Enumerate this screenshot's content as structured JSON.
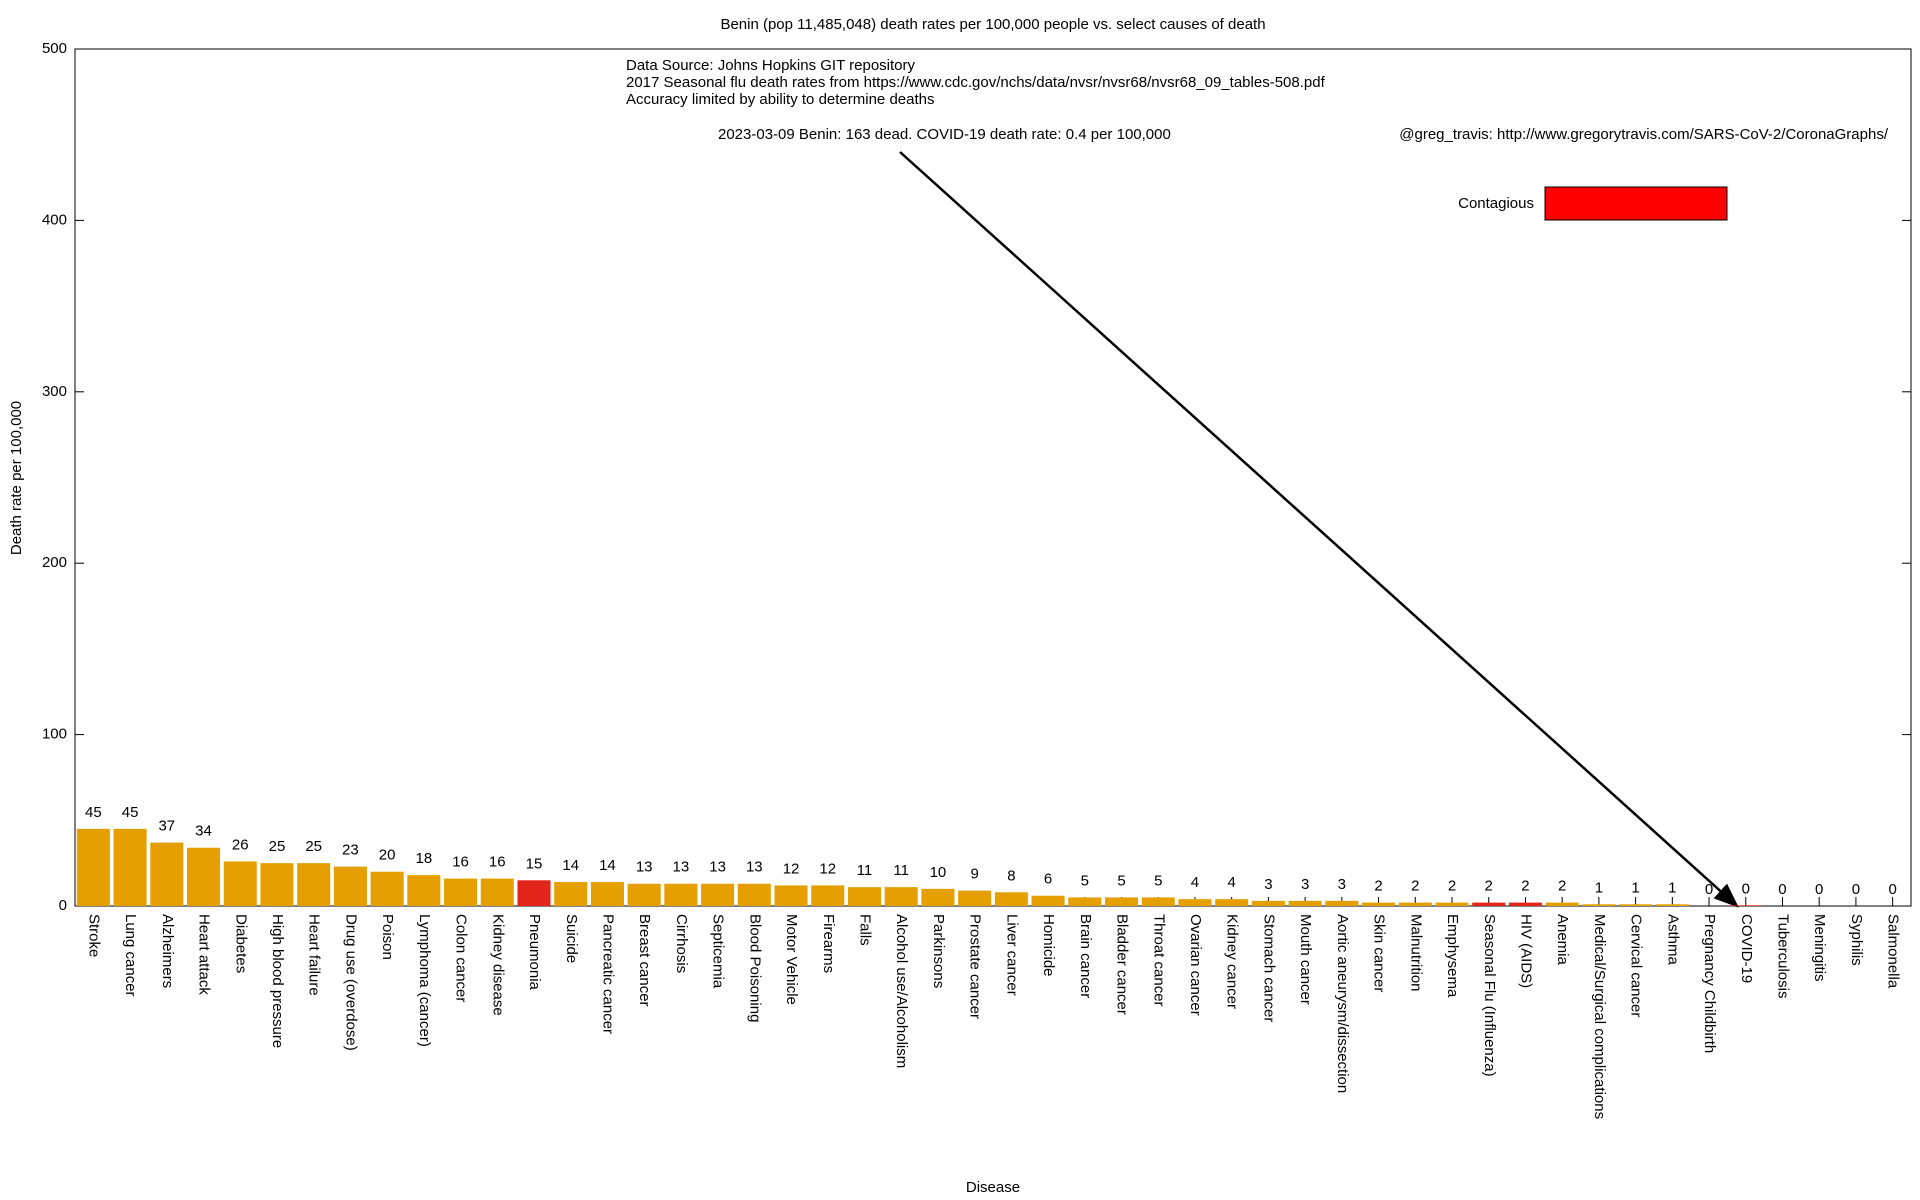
{
  "chart_data": {
    "type": "bar",
    "title": "Benin (pop 11,485,048) death rates per 100,000 people vs. select causes of death",
    "xlabel": "Disease",
    "ylabel": "Death rate per 100,000",
    "annotations": [
      "Data Source: Johns Hopkins GIT repository",
      "2017 Seasonal flu death rates from https://www.cdc.gov/nchs/data/nvsr/nvsr68/nvsr68_09_tables-508.pdf",
      "Accuracy limited by ability to determine deaths"
    ],
    "arrow_note": "2023-03-09 Benin: 163 dead.  COVID-19 death rate: 0.4 per 100,000",
    "credit": "@greg_travis: http://www.gregorytravis.com/SARS-CoV-2/CoronaGraphs/",
    "legend": {
      "label": "Contagious",
      "color": "#ff0000"
    },
    "categories": [
      "Stroke",
      "Lung cancer",
      "Alzheimers",
      "Heart attack",
      "Diabetes",
      "High blood pressure",
      "Heart failure",
      "Drug use (overdose)",
      "Poison",
      "Lymphoma (cancer)",
      "Colon cancer",
      "Kidney disease",
      "Pneumonia",
      "Suicide",
      "Pancreatic cancer",
      "Breast cancer",
      "Cirrhosis",
      "Septicemia",
      "Blood Poisoning",
      "Motor Vehicle",
      "Firearms",
      "Falls",
      "Alcohol use/Alcoholism",
      "Parkinsons",
      "Prostate cancer",
      "Liver cancer",
      "Homicide",
      "Brain cancer",
      "Bladder cancer",
      "Throat cancer",
      "Ovarian cancer",
      "Kidney cancer",
      "Stomach cancer",
      "Mouth cancer",
      "Aortic aneurysm/dissection",
      "Skin cancer",
      "Malnutrition",
      "Emphysema",
      "Seasonal Flu (Influenza)",
      "HIV (AIDS)",
      "Anemia",
      "Medical/Surgical complications",
      "Cervical cancer",
      "Asthma",
      "Pregnancy Childbirth",
      "COVID-19",
      "Tuberculosis",
      "Meningitis",
      "Syphilis",
      "Salmonella"
    ],
    "values": [
      45,
      45,
      37,
      34,
      26,
      25,
      25,
      23,
      20,
      18,
      16,
      16,
      15,
      14,
      14,
      13,
      13,
      13,
      13,
      12,
      12,
      11,
      11,
      10,
      9,
      8,
      6,
      5,
      5,
      5,
      4,
      4,
      3,
      3,
      3,
      2,
      2,
      2,
      2,
      2,
      2,
      1,
      1,
      1,
      0,
      0.4,
      0,
      0,
      0,
      0
    ],
    "value_labels": [
      "45",
      "45",
      "37",
      "34",
      "26",
      "25",
      "25",
      "23",
      "20",
      "18",
      "16",
      "16",
      "15",
      "14",
      "14",
      "13",
      "13",
      "13",
      "13",
      "12",
      "12",
      "11",
      "11",
      "10",
      "9",
      "8",
      "6",
      "5",
      "5",
      "5",
      "4",
      "4",
      "3",
      "3",
      "3",
      "2",
      "2",
      "2",
      "2",
      "2",
      "2",
      "1",
      "1",
      "1",
      "0",
      "0",
      "0",
      "0",
      "0",
      "0"
    ],
    "colors": [
      "#e69f00",
      "#e69f00",
      "#e69f00",
      "#e69f00",
      "#e69f00",
      "#e69f00",
      "#e69f00",
      "#e69f00",
      "#e69f00",
      "#e69f00",
      "#e69f00",
      "#e69f00",
      "#e3261c",
      "#e69f00",
      "#e69f00",
      "#e69f00",
      "#e69f00",
      "#e69f00",
      "#e69f00",
      "#e69f00",
      "#e69f00",
      "#e69f00",
      "#e69f00",
      "#e69f00",
      "#e69f00",
      "#e69f00",
      "#e69f00",
      "#e69f00",
      "#e69f00",
      "#e69f00",
      "#e69f00",
      "#e69f00",
      "#e69f00",
      "#e69f00",
      "#e69f00",
      "#e69f00",
      "#e69f00",
      "#e69f00",
      "#e3261c",
      "#e3261c",
      "#e69f00",
      "#e69f00",
      "#e69f00",
      "#e69f00",
      "#e69f00",
      "#e3261c",
      "#e3261c",
      "#e3261c",
      "#e3261c",
      "#e3261c"
    ],
    "ylim": [
      0,
      500
    ],
    "yticks": [
      0,
      100,
      200,
      300,
      400,
      500
    ]
  }
}
